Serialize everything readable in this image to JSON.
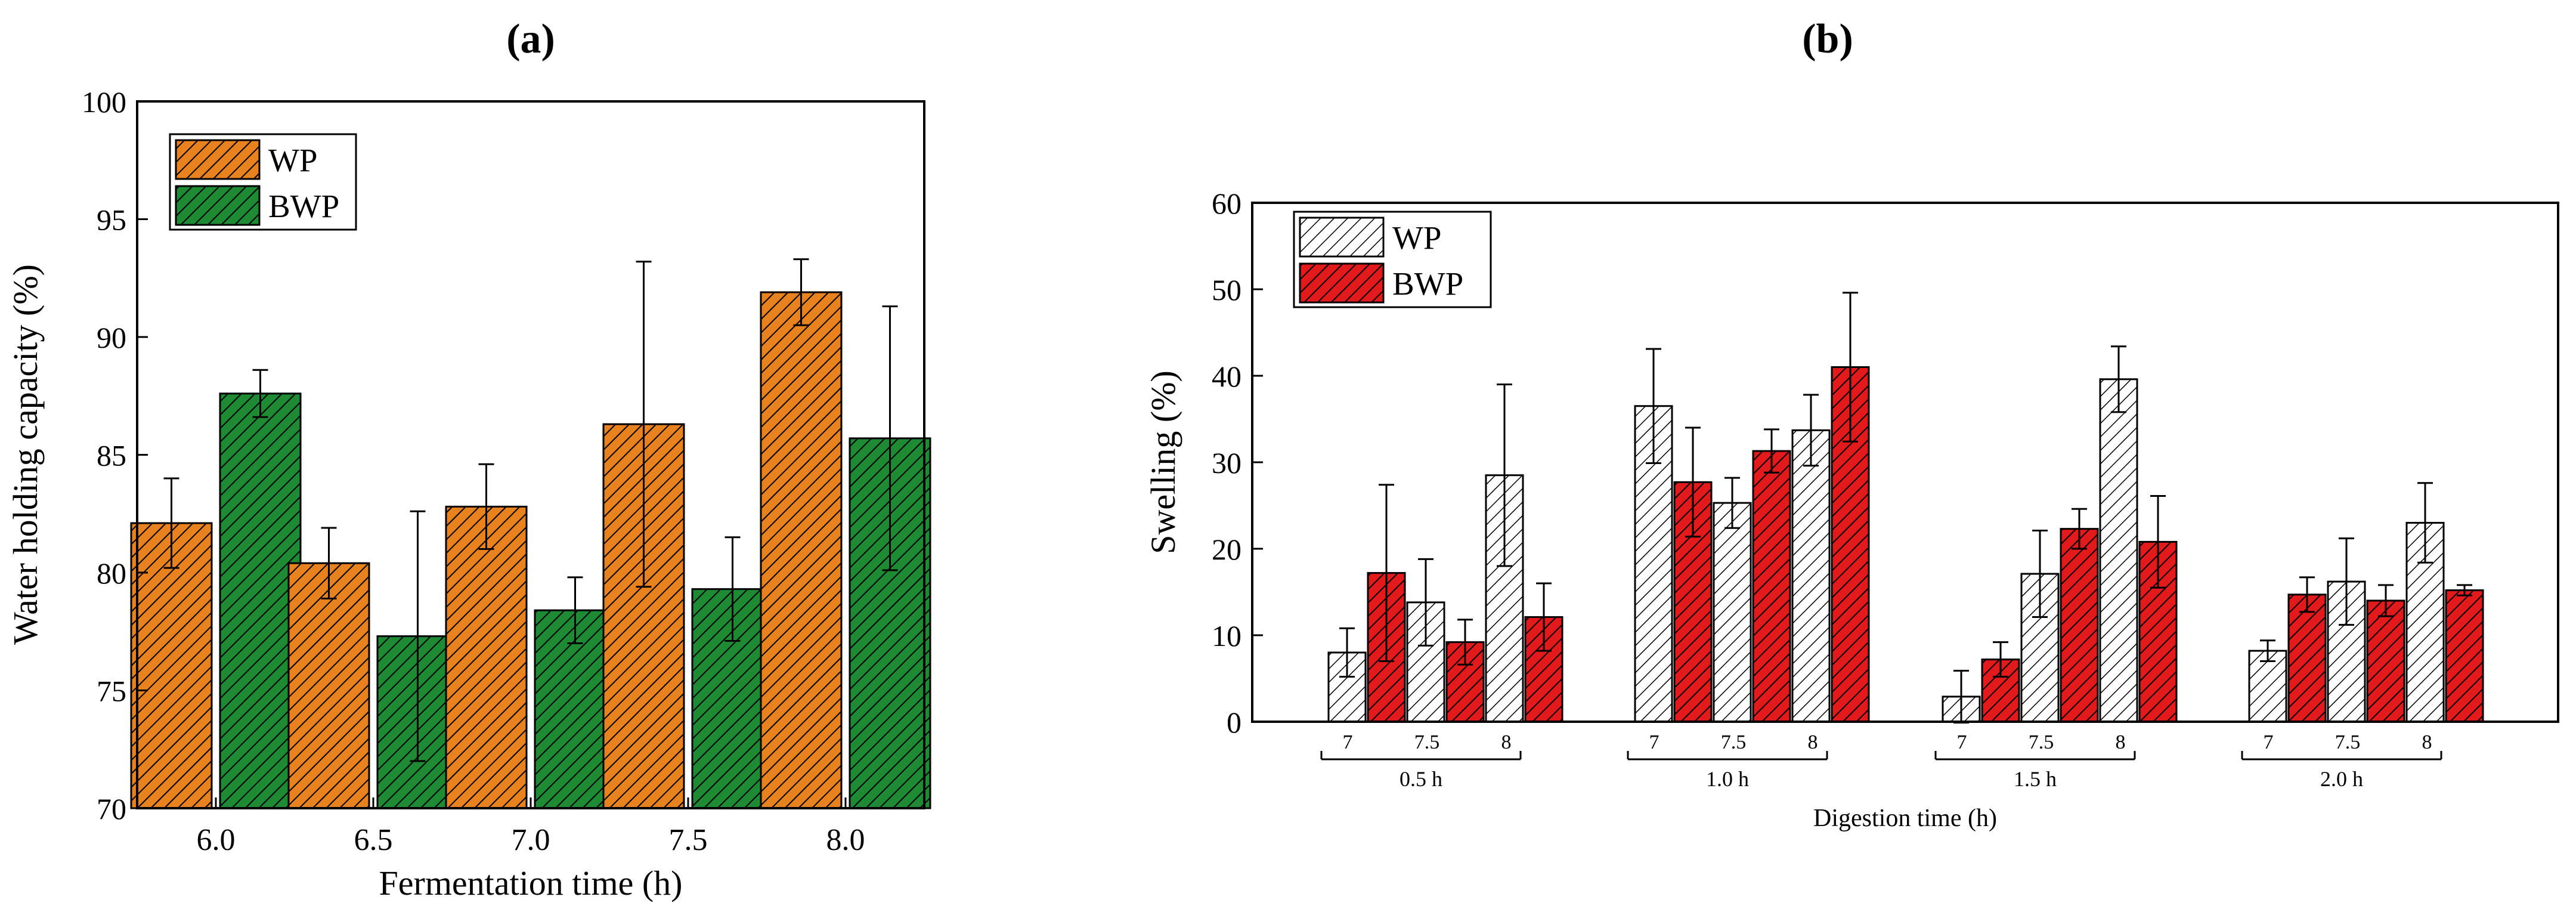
{
  "chart_data": [
    {
      "type": "bar",
      "panel_label": "(a)",
      "title": "",
      "xlabel": "Fermentation time (h)",
      "ylabel": "Water holding capacity (%)",
      "ylim": [
        70,
        100
      ],
      "yticks": [
        "70",
        "75",
        "80",
        "85",
        "90",
        "95",
        "100"
      ],
      "categories": [
        "6.0",
        "6.5",
        "7.0",
        "7.5",
        "8.0"
      ],
      "legend_position": "top-left",
      "series": [
        {
          "name": "WP",
          "color": "#e8821e",
          "pattern": "hatch",
          "values": [
            82.1,
            80.4,
            82.8,
            86.3,
            91.9
          ],
          "errors": [
            1.9,
            1.5,
            1.8,
            6.9,
            1.4
          ]
        },
        {
          "name": "BWP",
          "color": "#1f8a34",
          "pattern": "hatch",
          "values": [
            87.6,
            77.3,
            78.4,
            79.3,
            85.7
          ],
          "errors": [
            1.0,
            5.3,
            1.4,
            2.2,
            5.6
          ]
        }
      ]
    },
    {
      "type": "bar",
      "panel_label": "(b)",
      "title": "",
      "xlabel": "Digestion time (h)",
      "ylabel": "Swelling (%)",
      "ylim": [
        0,
        60
      ],
      "yticks": [
        "0",
        "10",
        "20",
        "30",
        "40",
        "50",
        "60"
      ],
      "groups": [
        "0.5 h",
        "1.0 h",
        "1.5 h",
        "2.0 h"
      ],
      "sub_categories": [
        "7",
        "7.5",
        "8"
      ],
      "legend_position": "top-left",
      "series": [
        {
          "name": "WP",
          "color": "#ffffff",
          "pattern": "hatch",
          "values": [
            [
              8.0,
              13.8,
              28.5
            ],
            [
              36.5,
              25.3,
              33.7
            ],
            [
              2.9,
              17.1,
              39.6
            ],
            [
              8.2,
              16.2,
              23.0
            ]
          ],
          "errors": [
            [
              2.8,
              5.0,
              10.5
            ],
            [
              6.6,
              2.9,
              4.1
            ],
            [
              3.0,
              5.0,
              3.8
            ],
            [
              1.2,
              5.0,
              4.6
            ]
          ]
        },
        {
          "name": "BWP",
          "color": "#e31a1c",
          "pattern": "hatch",
          "values": [
            [
              17.2,
              9.2,
              12.1
            ],
            [
              27.7,
              31.3,
              41.0
            ],
            [
              7.2,
              22.3,
              20.8
            ],
            [
              14.7,
              14.0,
              15.2
            ]
          ],
          "errors": [
            [
              10.2,
              2.6,
              3.9
            ],
            [
              6.3,
              2.5,
              8.6
            ],
            [
              2.0,
              2.3,
              5.3
            ],
            [
              2.0,
              1.8,
              0.6
            ]
          ]
        }
      ]
    }
  ]
}
